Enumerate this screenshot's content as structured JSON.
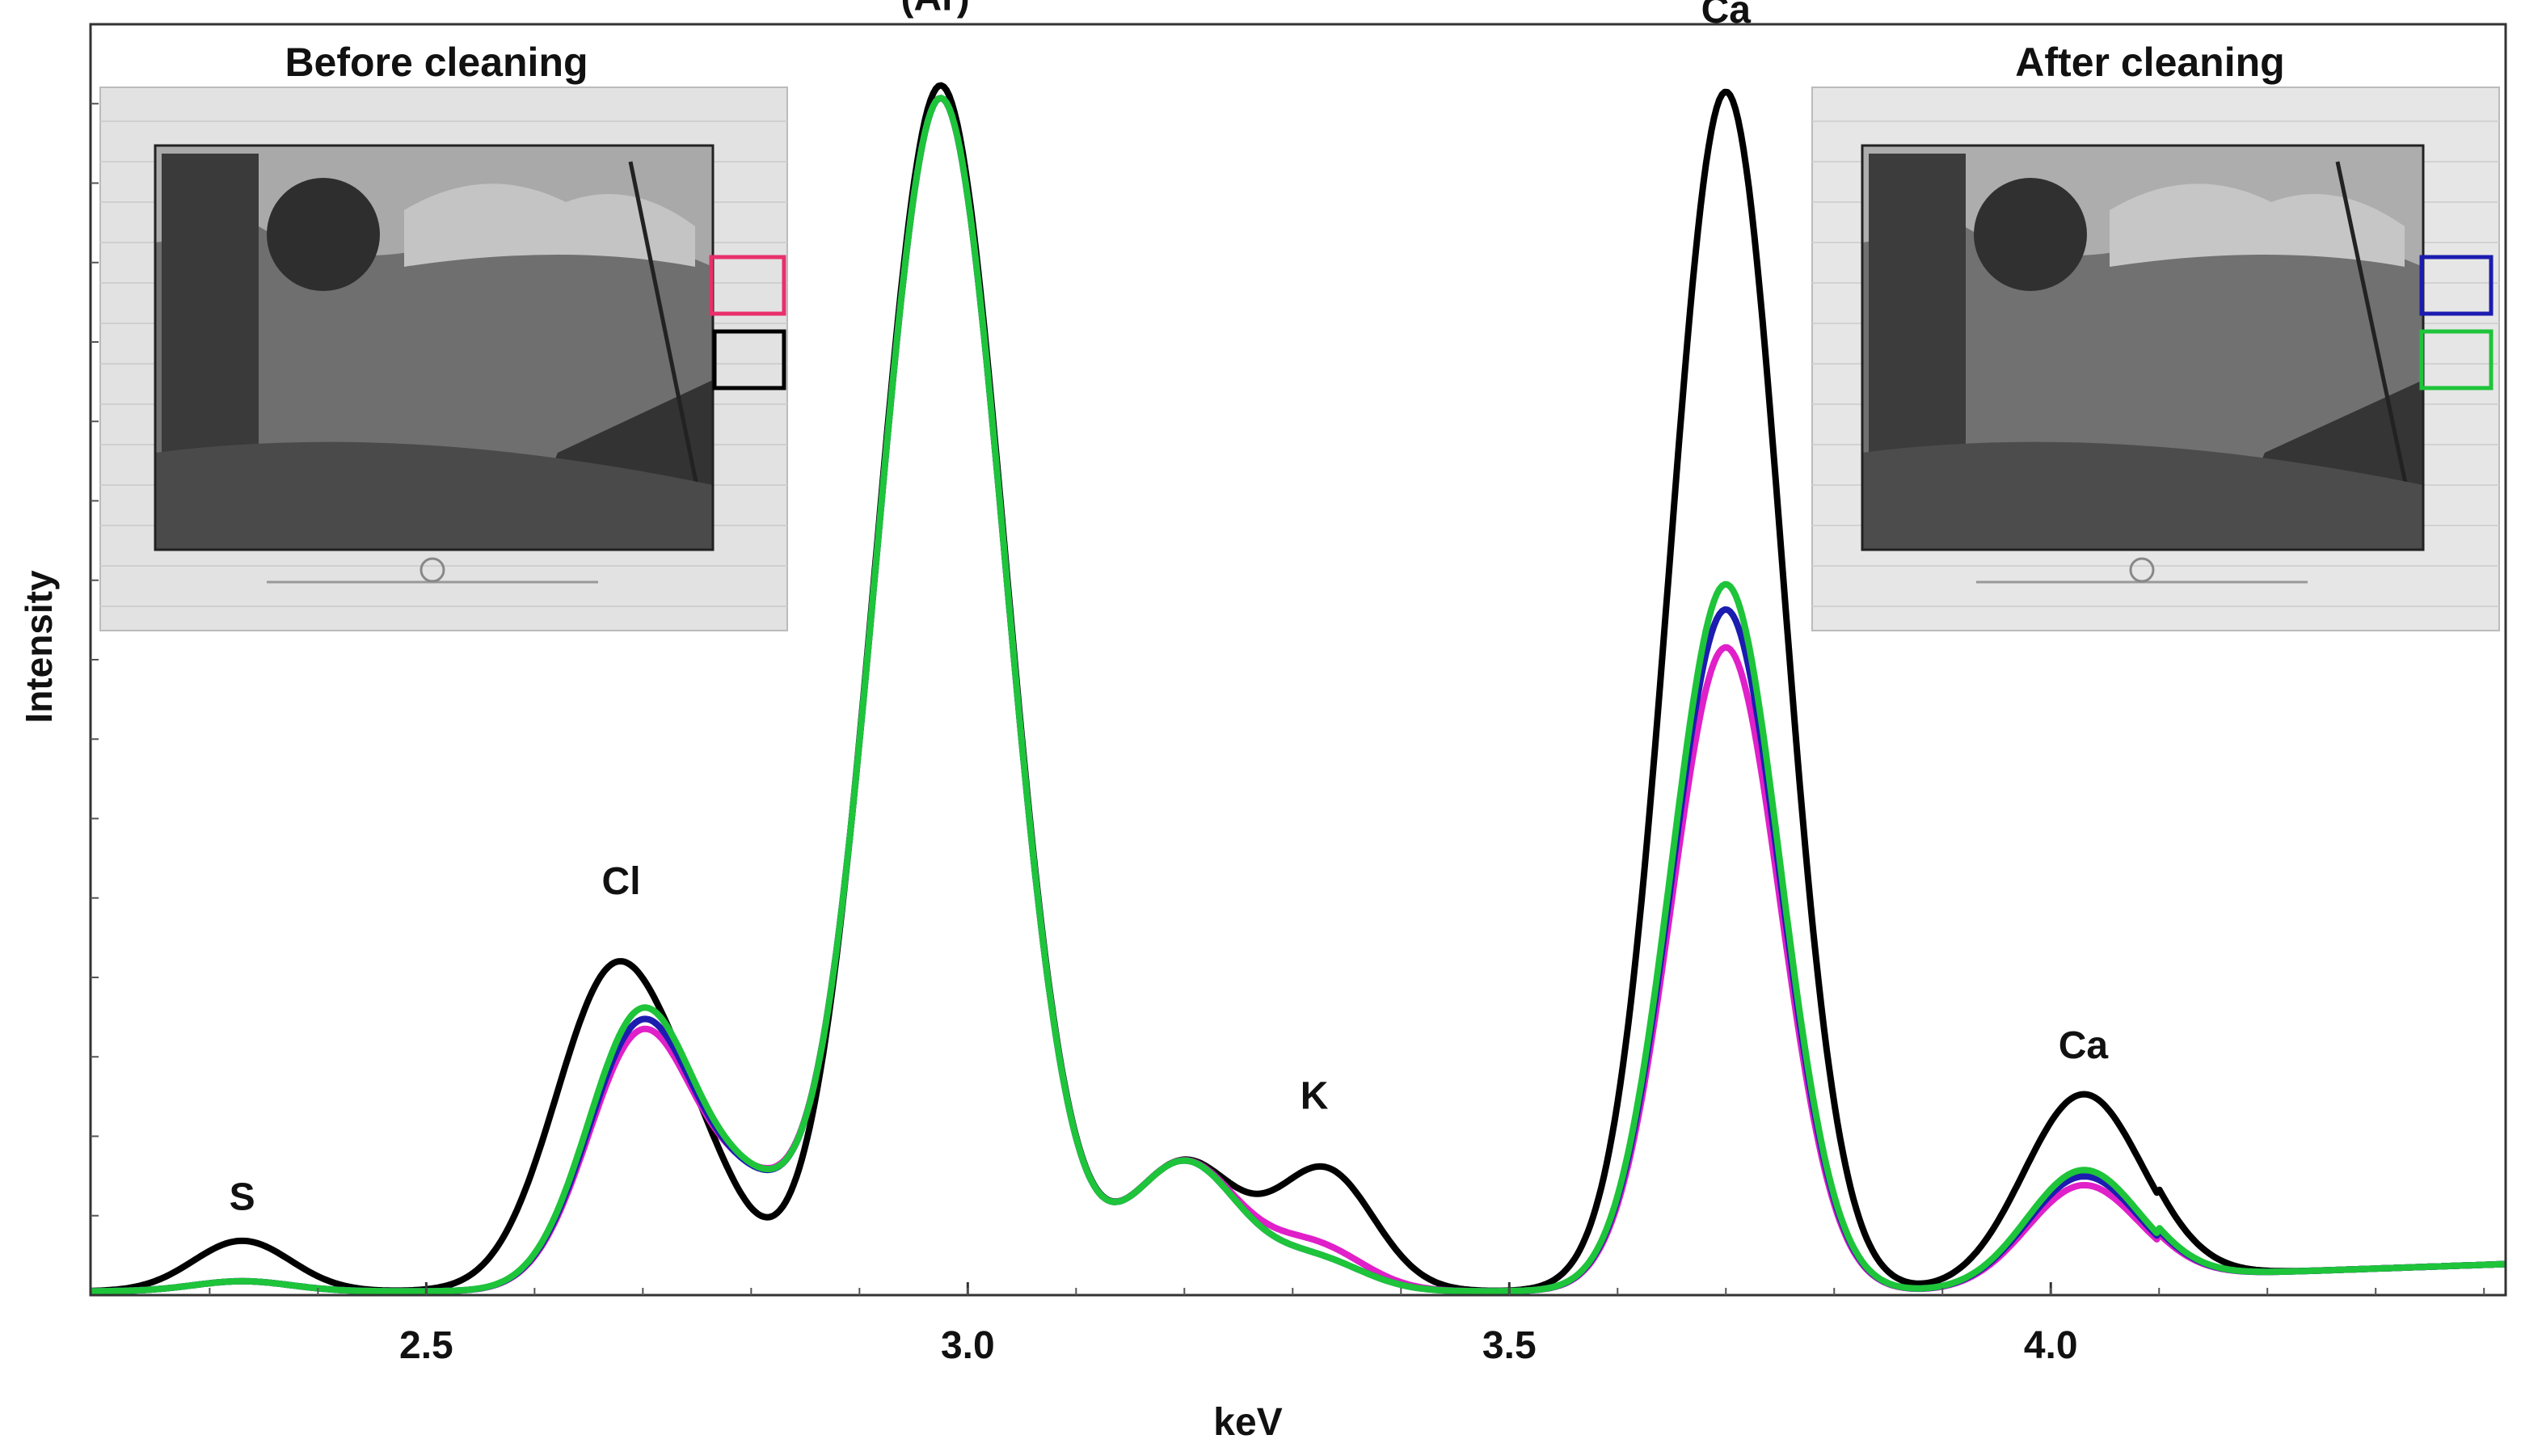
{
  "chart_data": {
    "type": "line",
    "title": "",
    "xlabel": "keV",
    "ylabel": "Intensity",
    "xlim": [
      2.19,
      4.42
    ],
    "ylim": [
      0,
      1.0
    ],
    "x_ticks": [
      2.5,
      3.0,
      3.5,
      4.0
    ],
    "x_tick_labels": [
      "2.5",
      "3.0",
      "3.5",
      "4.0"
    ],
    "y_tick_labels_shown": false,
    "peak_labels": [
      {
        "text": "S",
        "x": 2.33,
        "y": 0.06
      },
      {
        "text": "Cl",
        "x": 2.68,
        "y": 0.31
      },
      {
        "text": "(Ar)",
        "x": 2.97,
        "y": 1.01
      },
      {
        "text": "K",
        "x": 3.32,
        "y": 0.14
      },
      {
        "text": "Ca",
        "x": 3.7,
        "y": 1.0
      },
      {
        "text": "Ca",
        "x": 4.03,
        "y": 0.18
      }
    ],
    "series": [
      {
        "name": "before-cleaning-black",
        "color": "#000000",
        "peaks": [
          {
            "center": 2.33,
            "height": 0.04,
            "width": 0.045
          },
          {
            "center": 2.675,
            "height": 0.255,
            "width": 0.055
          },
          {
            "center": 2.76,
            "height": 0.055,
            "width": 0.04
          },
          {
            "center": 2.975,
            "height": 0.955,
            "width": 0.06
          },
          {
            "center": 3.2,
            "height": 0.102,
            "width": 0.05
          },
          {
            "center": 3.33,
            "height": 0.095,
            "width": 0.045
          },
          {
            "center": 3.7,
            "height": 0.95,
            "width": 0.052
          },
          {
            "center": 4.03,
            "height": 0.155,
            "width": 0.055
          }
        ]
      },
      {
        "name": "before-cleaning-pink",
        "color": "#e020c8",
        "peaks": [
          {
            "center": 2.33,
            "height": 0.008,
            "width": 0.045
          },
          {
            "center": 2.7,
            "height": 0.205,
            "width": 0.05
          },
          {
            "center": 2.8,
            "height": 0.06,
            "width": 0.04
          },
          {
            "center": 2.975,
            "height": 0.945,
            "width": 0.06
          },
          {
            "center": 3.2,
            "height": 0.102,
            "width": 0.05
          },
          {
            "center": 3.32,
            "height": 0.035,
            "width": 0.045
          },
          {
            "center": 3.7,
            "height": 0.51,
            "width": 0.05
          },
          {
            "center": 4.03,
            "height": 0.083,
            "width": 0.052
          }
        ]
      },
      {
        "name": "after-cleaning-blue",
        "color": "#1c1cb0",
        "peaks": [
          {
            "center": 2.33,
            "height": 0.008,
            "width": 0.045
          },
          {
            "center": 2.7,
            "height": 0.213,
            "width": 0.05
          },
          {
            "center": 2.8,
            "height": 0.058,
            "width": 0.04
          },
          {
            "center": 2.975,
            "height": 0.945,
            "width": 0.06
          },
          {
            "center": 3.2,
            "height": 0.102,
            "width": 0.05
          },
          {
            "center": 3.32,
            "height": 0.025,
            "width": 0.045
          },
          {
            "center": 3.7,
            "height": 0.54,
            "width": 0.05
          },
          {
            "center": 4.03,
            "height": 0.09,
            "width": 0.052
          }
        ]
      },
      {
        "name": "after-cleaning-green",
        "color": "#1ec43a",
        "peaks": [
          {
            "center": 2.33,
            "height": 0.008,
            "width": 0.045
          },
          {
            "center": 2.7,
            "height": 0.222,
            "width": 0.05
          },
          {
            "center": 2.8,
            "height": 0.058,
            "width": 0.04
          },
          {
            "center": 2.975,
            "height": 0.945,
            "width": 0.06
          },
          {
            "center": 3.2,
            "height": 0.102,
            "width": 0.05
          },
          {
            "center": 3.32,
            "height": 0.025,
            "width": 0.045
          },
          {
            "center": 3.7,
            "height": 0.56,
            "width": 0.05
          },
          {
            "center": 4.03,
            "height": 0.095,
            "width": 0.052
          }
        ]
      }
    ]
  },
  "insets": {
    "before": {
      "title": "Before cleaning",
      "markers": [
        "#e8306a",
        "#000000"
      ]
    },
    "after": {
      "title": "After cleaning",
      "markers": [
        "#1c1cb0",
        "#1ec43a"
      ]
    }
  }
}
